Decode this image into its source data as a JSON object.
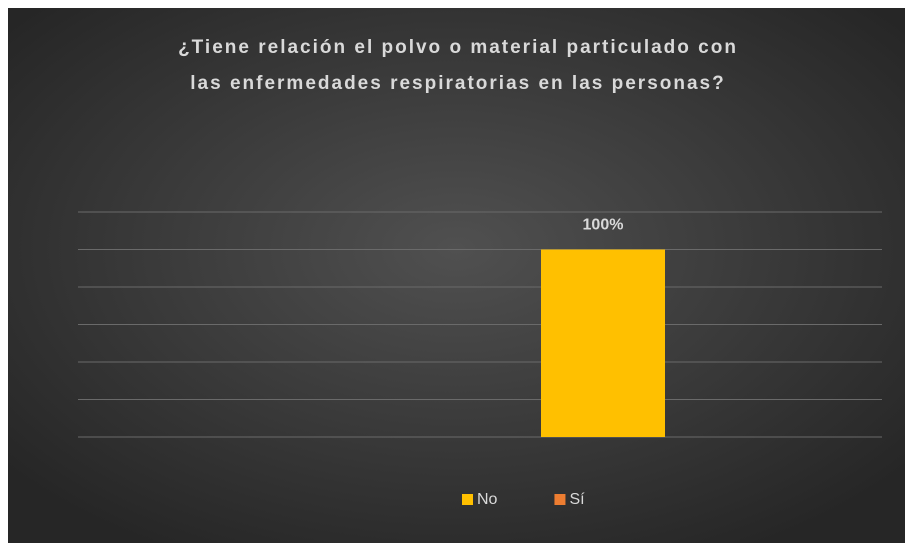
{
  "chart_data": {
    "type": "bar",
    "title": [
      "¿Tiene relación el polvo o material particulado con",
      "las enfermedades respiratorias en las personas?"
    ],
    "categories": [
      null
    ],
    "series": [
      {
        "name": "No",
        "color": "#ffc000",
        "values": [
          100
        ],
        "value_labels": [
          "100%"
        ]
      },
      {
        "name": "Sí",
        "color": "#ed7d31",
        "values": [
          null
        ]
      }
    ],
    "ylim": [
      0,
      120
    ],
    "yticks": [
      0,
      20,
      40,
      60,
      80,
      100,
      120
    ],
    "grid": true,
    "legend": "bottom"
  }
}
